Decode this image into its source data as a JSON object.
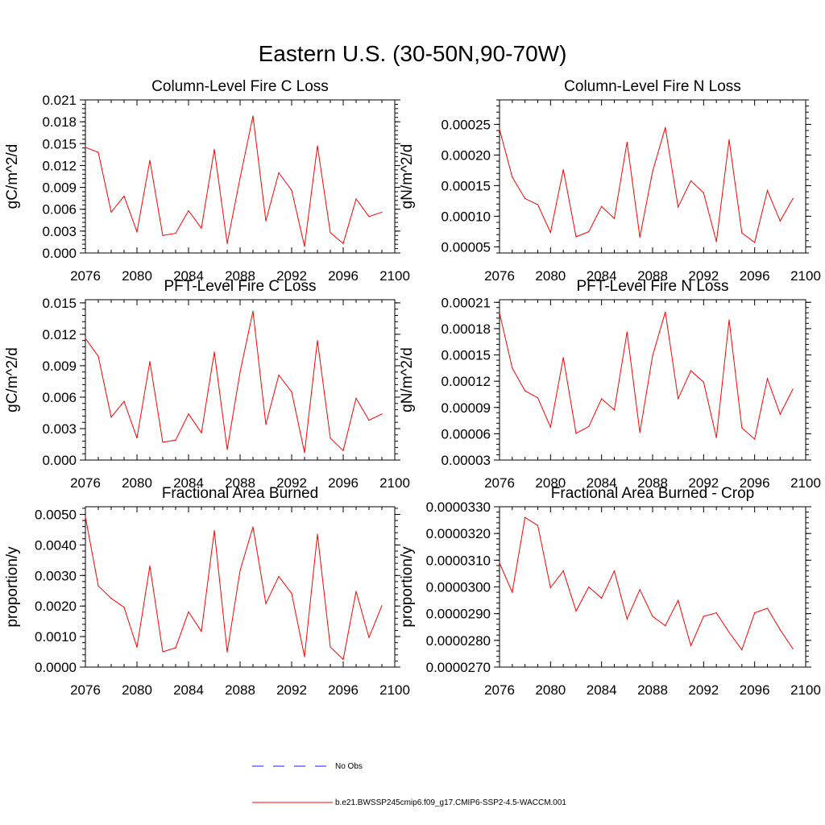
{
  "title": "Eastern U.S. (30-50N,90-70W)",
  "legend": [
    {
      "label": "No Obs",
      "color": "#1a1aff",
      "style": "dashed"
    },
    {
      "label": "b.e21.BWSSP245cmip6.f09_g17.CMIP6-SSP2-4.5-WACCM.001",
      "color": "#ff0000",
      "style": "solid"
    }
  ],
  "chart_data": [
    {
      "type": "line",
      "title": "Column-Level Fire C Loss",
      "ylabel": "gC/m^2/d",
      "xlabel": "",
      "xlim": [
        2076,
        2100
      ],
      "ylim": [
        0,
        0.021
      ],
      "xticks": [
        2076,
        2080,
        2084,
        2088,
        2092,
        2096,
        2100
      ],
      "yticks": [
        0,
        0.003,
        0.006,
        0.009,
        0.012,
        0.015,
        0.018,
        0.021
      ],
      "ytick_labels": [
        "0.000",
        "0.003",
        "0.006",
        "0.009",
        "0.012",
        "0.015",
        "0.018",
        "0.021"
      ],
      "series": [
        {
          "name": "b.e21.BWSSP245cmip6.f09_g17.CMIP6-SSP2-4.5-WACCM.001",
          "color": "#ff0000",
          "x": [
            2076,
            2077,
            2078,
            2079,
            2080,
            2081,
            2082,
            2083,
            2084,
            2085,
            2086,
            2087,
            2088,
            2089,
            2090,
            2091,
            2092,
            2093,
            2094,
            2095,
            2096,
            2097,
            2098,
            2099
          ],
          "values": [
            0.0145,
            0.0138,
            0.0056,
            0.0078,
            0.0029,
            0.0127,
            0.0024,
            0.0027,
            0.0058,
            0.0034,
            0.0142,
            0.0013,
            0.0103,
            0.0188,
            0.0044,
            0.011,
            0.0086,
            0.0009,
            0.0147,
            0.0028,
            0.0013,
            0.0074,
            0.005,
            0.0056
          ]
        }
      ]
    },
    {
      "type": "line",
      "title": "Column-Level Fire N Loss",
      "ylabel": "gN/m^2/d",
      "xlabel": "",
      "xlim": [
        2076,
        2100
      ],
      "ylim": [
        4e-05,
        0.00029
      ],
      "xticks": [
        2076,
        2080,
        2084,
        2088,
        2092,
        2096,
        2100
      ],
      "yticks": [
        5e-05,
        0.0001,
        0.00015,
        0.0002,
        0.00025
      ],
      "ytick_labels": [
        "0.00005",
        "0.00010",
        "0.00015",
        "0.00020",
        "0.00025"
      ],
      "series": [
        {
          "name": "b.e21.BWSSP245cmip6.f09_g17.CMIP6-SSP2-4.5-WACCM.001",
          "color": "#ff0000",
          "x": [
            2076,
            2077,
            2078,
            2079,
            2080,
            2081,
            2082,
            2083,
            2084,
            2085,
            2086,
            2087,
            2088,
            2089,
            2090,
            2091,
            2092,
            2093,
            2094,
            2095,
            2096,
            2097,
            2098,
            2099
          ],
          "values": [
            0.000242,
            0.000164,
            0.000129,
            0.000119,
            7.35e-05,
            0.000176,
            6.65e-05,
            7.48e-05,
            0.000116,
            9.63e-05,
            0.000221,
            6.58e-05,
            0.000173,
            0.000245,
            0.000115,
            0.000158,
            0.000138,
            5.85e-05,
            0.000225,
            7.28e-05,
            5.73e-05,
            0.000142,
            9.23e-05,
            0.000129
          ]
        }
      ]
    },
    {
      "type": "line",
      "title": "PFT-Level Fire C Loss",
      "ylabel": "gC/m^2/d",
      "xlabel": "",
      "xlim": [
        2076,
        2100
      ],
      "ylim": [
        0,
        0.0153
      ],
      "xticks": [
        2076,
        2080,
        2084,
        2088,
        2092,
        2096,
        2100
      ],
      "yticks": [
        0,
        0.003,
        0.006,
        0.009,
        0.012,
        0.015
      ],
      "ytick_labels": [
        "0.000",
        "0.003",
        "0.006",
        "0.009",
        "0.012",
        "0.015"
      ],
      "series": [
        {
          "name": "b.e21.BWSSP245cmip6.f09_g17.CMIP6-SSP2-4.5-WACCM.001",
          "color": "#ff0000",
          "x": [
            2076,
            2077,
            2078,
            2079,
            2080,
            2081,
            2082,
            2083,
            2084,
            2085,
            2086,
            2087,
            2088,
            2089,
            2090,
            2091,
            2092,
            2093,
            2094,
            2095,
            2096,
            2097,
            2098,
            2099
          ],
          "values": [
            0.0116,
            0.0099,
            0.0041,
            0.0056,
            0.0021,
            0.0094,
            0.0017,
            0.0019,
            0.0044,
            0.0026,
            0.0103,
            0.001,
            0.0084,
            0.0142,
            0.0034,
            0.0081,
            0.0065,
            0.0007,
            0.0114,
            0.0021,
            0.0009,
            0.0059,
            0.0038,
            0.0044
          ]
        }
      ]
    },
    {
      "type": "line",
      "title": "PFT-Level Fire N Loss",
      "ylabel": "gN/m^2/d",
      "xlabel": "",
      "xlim": [
        2076,
        2100
      ],
      "ylim": [
        3e-05,
        0.000213
      ],
      "xticks": [
        2076,
        2080,
        2084,
        2088,
        2092,
        2096,
        2100
      ],
      "yticks": [
        3e-05,
        6e-05,
        9e-05,
        0.00012,
        0.00015,
        0.00018,
        0.00021
      ],
      "ytick_labels": [
        "0.00003",
        "0.00006",
        "0.00009",
        "0.00012",
        "0.00015",
        "0.00018",
        "0.00021"
      ],
      "series": [
        {
          "name": "b.e21.BWSSP245cmip6.f09_g17.CMIP6-SSP2-4.5-WACCM.001",
          "color": "#ff0000",
          "x": [
            2076,
            2077,
            2078,
            2079,
            2080,
            2081,
            2082,
            2083,
            2084,
            2085,
            2086,
            2087,
            2088,
            2089,
            2090,
            2091,
            2092,
            2093,
            2094,
            2095,
            2096,
            2097,
            2098,
            2099
          ],
          "values": [
            0.000198,
            0.000135,
            0.000109,
            0.000101,
            6.75e-05,
            0.000147,
            6.05e-05,
            6.83e-05,
            0.0001,
            8.72e-05,
            0.000176,
            6.15e-05,
            0.000149,
            0.000199,
            0.0001,
            0.000132,
            0.000119,
            5.55e-05,
            0.00019,
            6.68e-05,
            5.38e-05,
            0.000123,
            8.23e-05,
            0.000111
          ]
        }
      ]
    },
    {
      "type": "line",
      "title": "Fractional Area Burned",
      "ylabel": "proportion/y",
      "xlabel": "",
      "xlim": [
        2076,
        2100
      ],
      "ylim": [
        0,
        0.00525
      ],
      "xticks": [
        2076,
        2080,
        2084,
        2088,
        2092,
        2096,
        2100
      ],
      "yticks": [
        0,
        0.001,
        0.002,
        0.003,
        0.004,
        0.005
      ],
      "ytick_labels": [
        "0.0000",
        "0.0010",
        "0.0020",
        "0.0030",
        "0.0040",
        "0.0050"
      ],
      "series": [
        {
          "name": "b.e21.BWSSP245cmip6.f09_g17.CMIP6-SSP2-4.5-WACCM.001",
          "color": "#ff0000",
          "x": [
            2076,
            2077,
            2078,
            2079,
            2080,
            2081,
            2082,
            2083,
            2084,
            2085,
            2086,
            2087,
            2088,
            2089,
            2090,
            2091,
            2092,
            2093,
            2094,
            2095,
            2096,
            2097,
            2098,
            2099
          ],
          "values": [
            0.00492,
            0.00266,
            0.00225,
            0.00196,
            0.00065,
            0.00331,
            0.0005,
            0.00063,
            0.00181,
            0.00117,
            0.00447,
            0.00049,
            0.00316,
            0.00459,
            0.00208,
            0.00297,
            0.00241,
            0.00034,
            0.00435,
            0.00066,
            0.00025,
            0.00248,
            0.00097,
            0.00201
          ]
        }
      ]
    },
    {
      "type": "line",
      "title": "Fractional Area Burned - Crop",
      "ylabel": "proportion/y",
      "xlabel": "",
      "xlim": [
        2076,
        2100
      ],
      "ylim": [
        2.7e-05,
        3.3e-05
      ],
      "xticks": [
        2076,
        2080,
        2084,
        2088,
        2092,
        2096,
        2100
      ],
      "yticks": [
        2.7e-05,
        2.8e-05,
        2.9e-05,
        3e-05,
        3.1e-05,
        3.2e-05,
        3.3e-05
      ],
      "ytick_labels": [
        "0.0000270",
        "0.0000280",
        "0.0000290",
        "0.0000300",
        "0.0000310",
        "0.0000320",
        "0.0000330"
      ],
      "series": [
        {
          "name": "b.e21.BWSSP245cmip6.f09_g17.CMIP6-SSP2-4.5-WACCM.001",
          "color": "#ff0000",
          "x": [
            2076,
            2077,
            2078,
            2079,
            2080,
            2081,
            2082,
            2083,
            2084,
            2085,
            2086,
            2087,
            2088,
            2089,
            2090,
            2091,
            2092,
            2093,
            2094,
            2095,
            2096,
            2097,
            2098,
            2099
          ],
          "values": [
            3.09e-05,
            2.98e-05,
            3.26e-05,
            3.23e-05,
            2.997e-05,
            3.06e-05,
            2.91e-05,
            3e-05,
            2.958e-05,
            3.06e-05,
            2.88e-05,
            2.99e-05,
            2.89e-05,
            2.855e-05,
            2.95e-05,
            2.78e-05,
            2.89e-05,
            2.903e-05,
            2.83e-05,
            2.765e-05,
            2.903e-05,
            2.92e-05,
            2.84e-05,
            2.768e-05
          ]
        }
      ]
    }
  ]
}
